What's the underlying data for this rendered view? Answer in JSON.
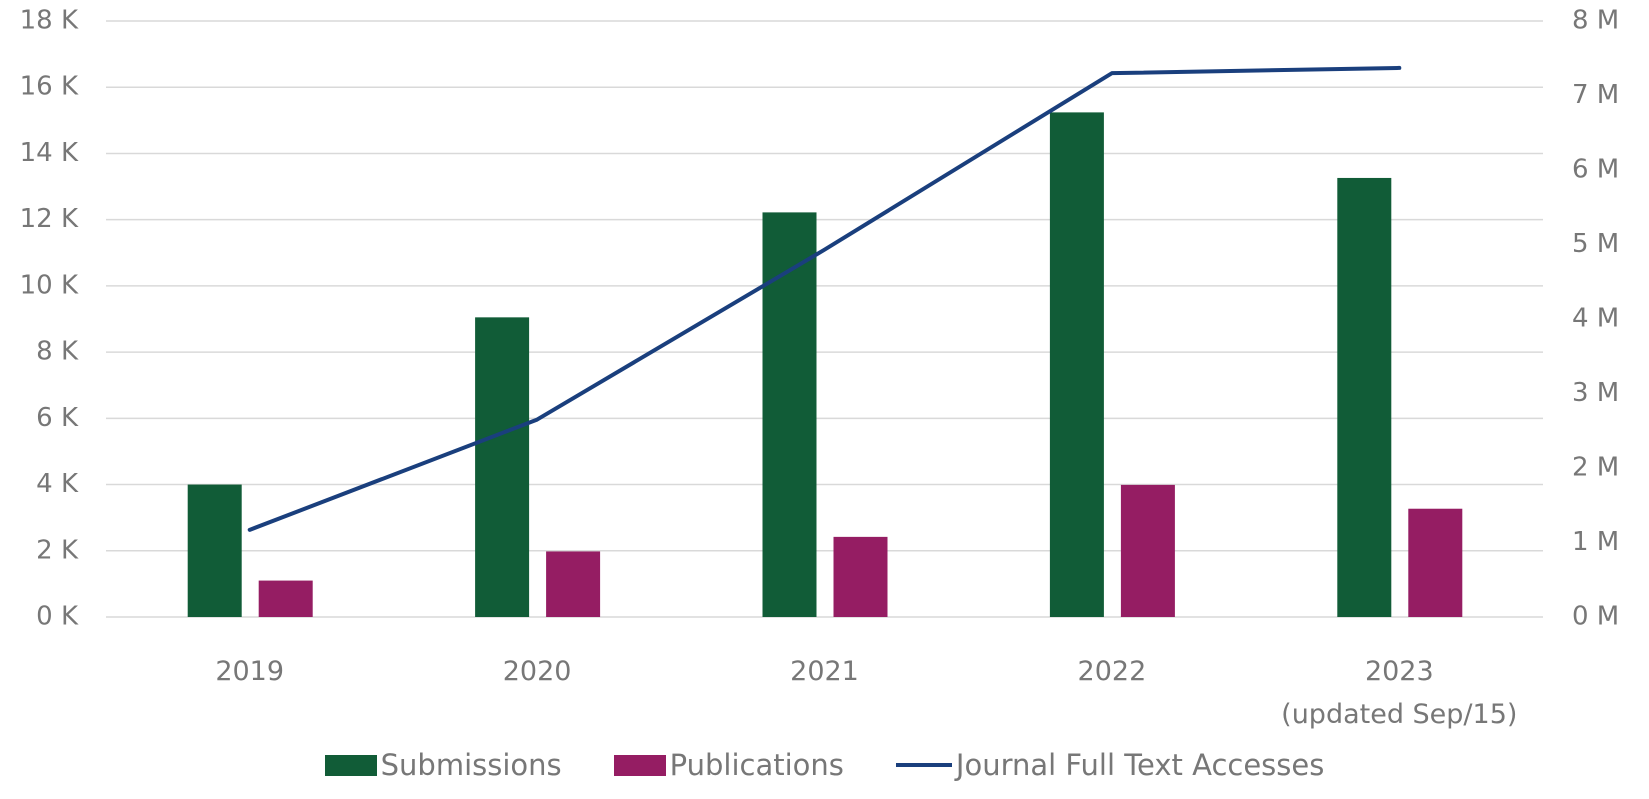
{
  "chart_data": {
    "type": "bar_line",
    "categories": [
      "2019",
      "2020",
      "2021",
      "2022",
      "2023\n(updated Sep/15)"
    ],
    "series": [
      {
        "name": "Submissions",
        "color": "#115c37",
        "type": "bar",
        "values": [
          4000,
          9050,
          12220,
          15240,
          13260
        ]
      },
      {
        "name": "Publications",
        "color": "#951d63",
        "type": "bar",
        "values": [
          1100,
          1980,
          2420,
          3990,
          3270
        ]
      },
      {
        "name": "Journal Full Text Accesses",
        "color": "#1a3f7d",
        "type": "line",
        "axis": "y2",
        "values": [
          1170000,
          2650000,
          4930000,
          7300000,
          7370000
        ]
      }
    ],
    "ylim": [
      0,
      18000
    ],
    "yticks": [
      {
        "value": 0,
        "label": "0 K"
      },
      {
        "value": 2000,
        "label": "2 K"
      },
      {
        "value": 4000,
        "label": "4 K"
      },
      {
        "value": 6000,
        "label": "6 K"
      },
      {
        "value": 8000,
        "label": "8 K"
      },
      {
        "value": 10000,
        "label": "10 K"
      },
      {
        "value": 12000,
        "label": "12 K"
      },
      {
        "value": 14000,
        "label": "14 K"
      },
      {
        "value": 16000,
        "label": "16 K"
      },
      {
        "value": 18000,
        "label": "18 K"
      }
    ],
    "y2lim": [
      0,
      8000000
    ],
    "y2ticks": [
      {
        "value": 0,
        "label": "0 M"
      },
      {
        "value": 1000000,
        "label": "1 M"
      },
      {
        "value": 2000000,
        "label": "2 M"
      },
      {
        "value": 3000000,
        "label": "3 M"
      },
      {
        "value": 4000000,
        "label": "4 M"
      },
      {
        "value": 5000000,
        "label": "5 M"
      },
      {
        "value": 6000000,
        "label": "6 M"
      },
      {
        "value": 7000000,
        "label": "7 M"
      },
      {
        "value": 8000000,
        "label": "8 M"
      }
    ],
    "grid": true,
    "legend": "bottom"
  }
}
